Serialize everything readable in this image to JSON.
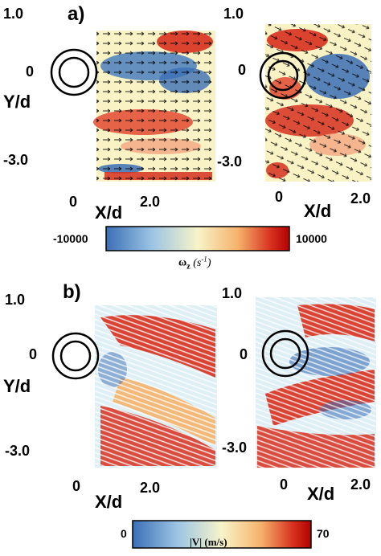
{
  "panel_a": {
    "label": "a)",
    "y_ticks": [
      "1.0",
      "0",
      "-3.0"
    ],
    "y_label": "Y/d",
    "x_ticks": [
      "0",
      "2.0"
    ],
    "x_label": "X/d",
    "right_ticks": [
      "1.0",
      "0",
      "-3.0"
    ],
    "right_x_ticks": [
      "0",
      "2.0"
    ],
    "right_x_label": "X/d",
    "colorbar": {
      "min_label": "-10000",
      "max_label": "10000",
      "title_symbol": "ω",
      "title_sub": "z",
      "title_unit_open": " (s",
      "title_unit_exp": "-1",
      "title_unit_close": ")",
      "colors": [
        "#3b6fb6",
        "#9cc4e4",
        "#f7f4c8",
        "#f5b26b",
        "#d7301f",
        "#b30000"
      ]
    }
  },
  "panel_b": {
    "label": "b)",
    "y_ticks": [
      "1.0",
      "0",
      "-3.0"
    ],
    "y_label": "Y/d",
    "x_ticks": [
      "0",
      "2.0"
    ],
    "x_label": "X/d",
    "right_ticks": [
      "1.0",
      "0",
      "-3.0"
    ],
    "right_x_ticks": [
      "0",
      "2.0"
    ],
    "right_x_label": "X/d",
    "colorbar": {
      "min_label": "0",
      "max_label": "70",
      "title": "|V| (m/s)",
      "colors": [
        "#3b6fb6",
        "#9cc4e4",
        "#f7f4c8",
        "#f5b26b",
        "#d7301f",
        "#b30000"
      ]
    }
  }
}
